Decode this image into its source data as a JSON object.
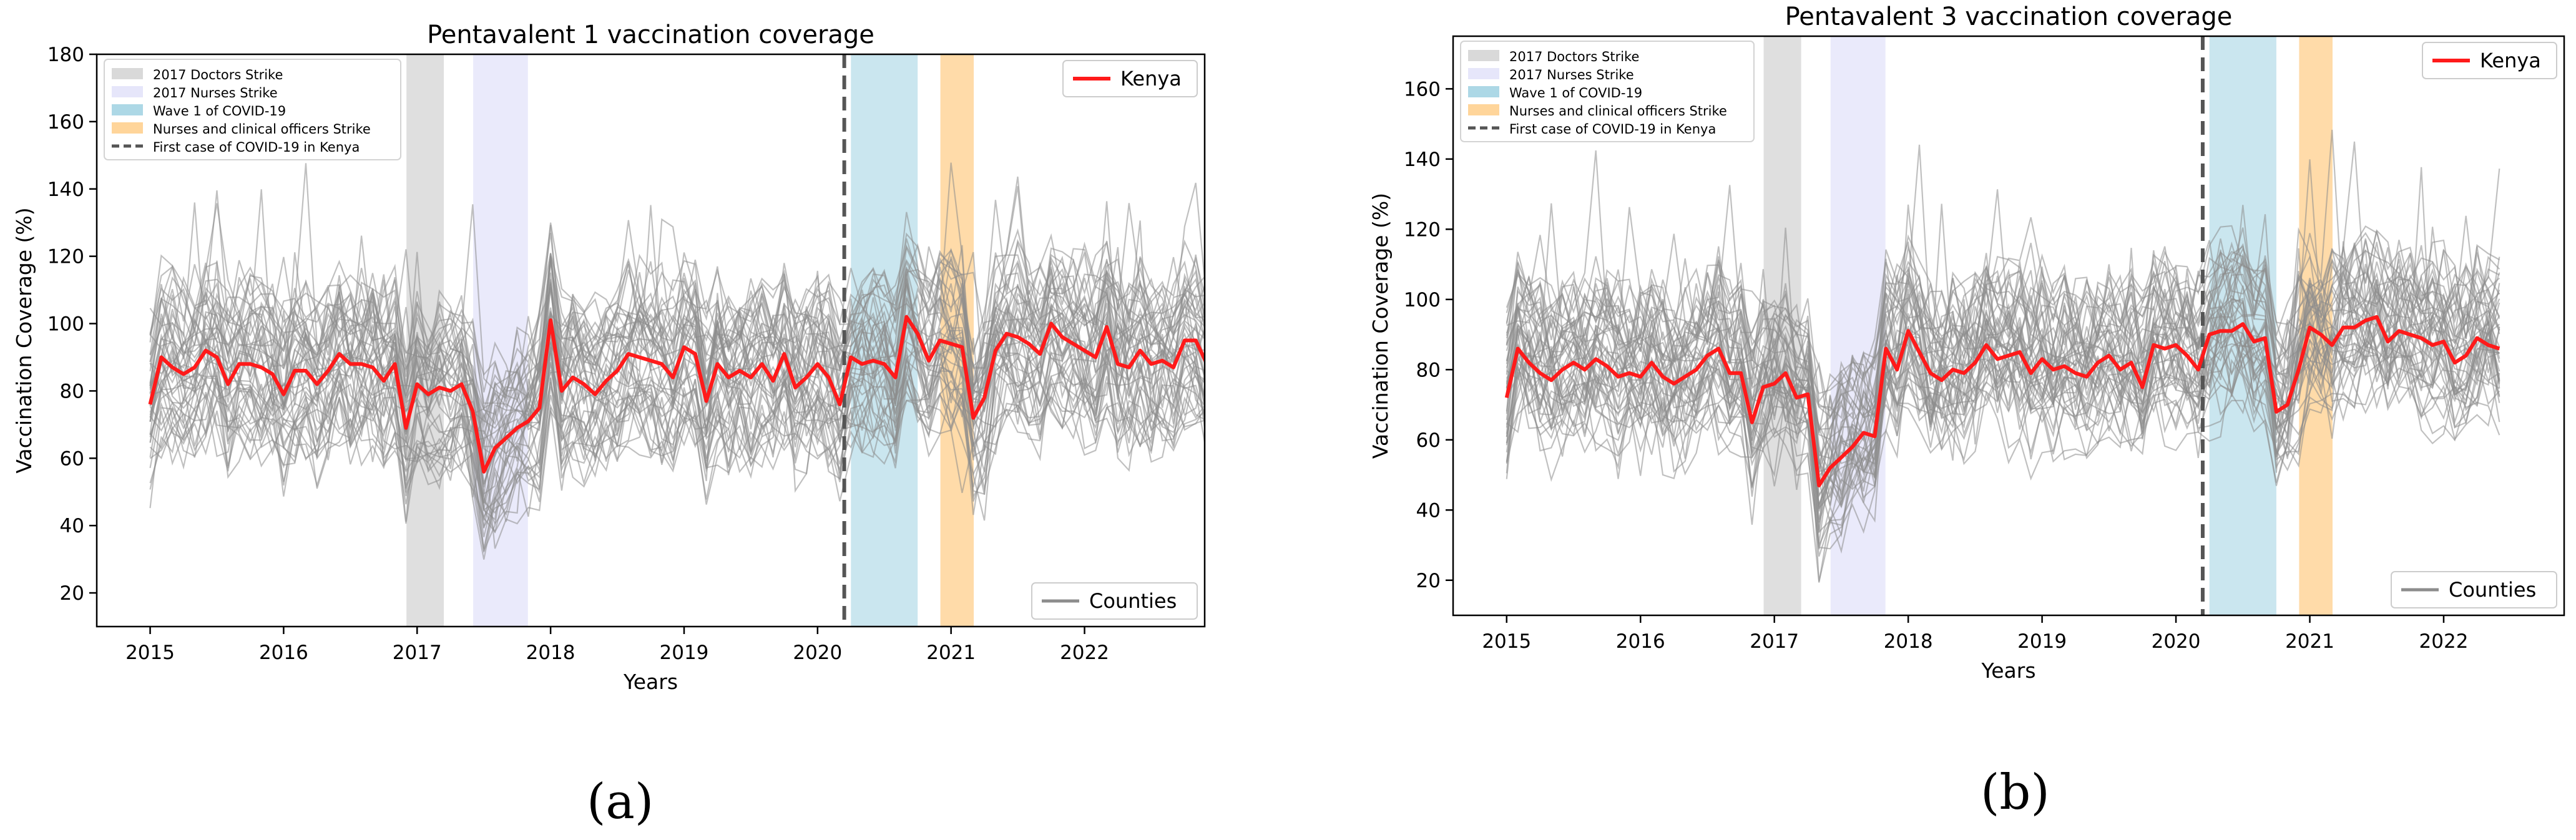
{
  "figure": {
    "panel_labels": [
      "(a)",
      "(b)"
    ]
  },
  "colors": {
    "kenya_line": "#ff1a1a",
    "county_line": "#8c8c8c",
    "doctors_strike": "#d9d9d9",
    "nurses_strike": "#e6e6fa",
    "covid_wave": "#add8e6",
    "nurses_clinical_strike": "#ffd59a",
    "first_case": "#555555"
  },
  "chart_data": [
    {
      "type": "line",
      "title": "Pentavalent 1 vaccination coverage",
      "xlabel": "Years",
      "ylabel": "Vaccination Coverage (%)",
      "xlim": [
        2014.6,
        2022.9
      ],
      "ylim": [
        10,
        180
      ],
      "xticks": [
        2015,
        2016,
        2017,
        2018,
        2019,
        2020,
        2021,
        2022
      ],
      "yticks": [
        20,
        40,
        60,
        80,
        100,
        120,
        140,
        160,
        180
      ],
      "legend_shading": [
        {
          "label": "2017 Doctors Strike",
          "color_key": "doctors_strike"
        },
        {
          "label": "2017 Nurses Strike",
          "color_key": "nurses_strike"
        },
        {
          "label": "Wave 1 of COVID-19",
          "color_key": "covid_wave"
        },
        {
          "label": "Nurses and clinical officers Strike",
          "color_key": "nurses_clinical_strike"
        },
        {
          "label": "First case of COVID-19 in Kenya",
          "color_key": "first_case",
          "style": "dashed"
        }
      ],
      "legend_kenya": "Kenya",
      "legend_counties": "Counties",
      "spans": [
        {
          "label": "2017 Doctors Strike",
          "start": 2016.92,
          "end": 2017.2,
          "color_key": "doctors_strike"
        },
        {
          "label": "2017 Nurses Strike",
          "start": 2017.42,
          "end": 2017.83,
          "color_key": "nurses_strike"
        },
        {
          "label": "Wave 1 of COVID-19",
          "start": 2020.25,
          "end": 2020.75,
          "color_key": "covid_wave"
        },
        {
          "label": "Nurses and clinical officers Strike",
          "start": 2020.92,
          "end": 2021.17,
          "color_key": "nurses_clinical_strike"
        }
      ],
      "vline": {
        "label": "First case of COVID-19 in Kenya",
        "x": 2020.2
      },
      "county_series_count": 47,
      "series": [
        {
          "name": "Kenya",
          "x_start": 2015.0,
          "x_step": 0.08333,
          "values": [
            76,
            90,
            87,
            85,
            87,
            92,
            90,
            82,
            88,
            88,
            87,
            85,
            79,
            86,
            86,
            82,
            86,
            91,
            88,
            88,
            87,
            83,
            88,
            69,
            82,
            79,
            81,
            80,
            82,
            74,
            56,
            63,
            66,
            69,
            71,
            75,
            101,
            80,
            84,
            82,
            79,
            83,
            86,
            91,
            90,
            89,
            88,
            84,
            93,
            91,
            77,
            88,
            84,
            86,
            84,
            88,
            83,
            91,
            81,
            84,
            88,
            84,
            76,
            90,
            88,
            89,
            88,
            84,
            102,
            97,
            89,
            95,
            94,
            93,
            72,
            78,
            92,
            97,
            96,
            94,
            91,
            100,
            96,
            94,
            92,
            90,
            99,
            88,
            87,
            92,
            88,
            89,
            87,
            95,
            95,
            88,
            90
          ]
        }
      ]
    },
    {
      "type": "line",
      "title": "Pentavalent 3 vaccination coverage",
      "xlabel": "Years",
      "ylabel": "Vaccination Coverage (%)",
      "xlim": [
        2014.6,
        2022.9
      ],
      "ylim": [
        10,
        175
      ],
      "xticks": [
        2015,
        2016,
        2017,
        2018,
        2019,
        2020,
        2021,
        2022
      ],
      "yticks": [
        20,
        40,
        60,
        80,
        100,
        120,
        140,
        160
      ],
      "legend_shading": [
        {
          "label": "2017 Doctors Strike",
          "color_key": "doctors_strike"
        },
        {
          "label": "2017 Nurses Strike",
          "color_key": "nurses_strike"
        },
        {
          "label": "Wave 1 of COVID-19",
          "color_key": "covid_wave"
        },
        {
          "label": "Nurses and clinical officers Strike",
          "color_key": "nurses_clinical_strike"
        },
        {
          "label": "First case of COVID-19 in Kenya",
          "color_key": "first_case",
          "style": "dashed"
        }
      ],
      "legend_kenya": "Kenya",
      "legend_counties": "Counties",
      "spans": [
        {
          "label": "2017 Doctors Strike",
          "start": 2016.92,
          "end": 2017.2,
          "color_key": "doctors_strike"
        },
        {
          "label": "2017 Nurses Strike",
          "start": 2017.42,
          "end": 2017.83,
          "color_key": "nurses_strike"
        },
        {
          "label": "Wave 1 of COVID-19",
          "start": 2020.25,
          "end": 2020.75,
          "color_key": "covid_wave"
        },
        {
          "label": "Nurses and clinical officers Strike",
          "start": 2020.92,
          "end": 2021.17,
          "color_key": "nurses_clinical_strike"
        }
      ],
      "vline": {
        "label": "First case of COVID-19 in Kenya",
        "x": 2020.2
      },
      "county_series_count": 47,
      "series": [
        {
          "name": "Kenya",
          "x_start": 2015.0,
          "x_step": 0.08333,
          "values": [
            72,
            86,
            82,
            79,
            77,
            80,
            82,
            80,
            83,
            81,
            78,
            79,
            78,
            82,
            78,
            76,
            78,
            80,
            84,
            86,
            79,
            79,
            65,
            75,
            76,
            79,
            72,
            73,
            47,
            52,
            55,
            58,
            62,
            61,
            86,
            80,
            91,
            85,
            79,
            77,
            80,
            79,
            82,
            87,
            83,
            84,
            85,
            79,
            83,
            80,
            81,
            79,
            78,
            82,
            84,
            80,
            82,
            75,
            87,
            86,
            87,
            84,
            80,
            90,
            91,
            91,
            93,
            88,
            89,
            68,
            70,
            80,
            92,
            90,
            87,
            92,
            92,
            94,
            95,
            88,
            91,
            90,
            89,
            87,
            88,
            82,
            84,
            89,
            87,
            86
          ]
        }
      ]
    }
  ]
}
